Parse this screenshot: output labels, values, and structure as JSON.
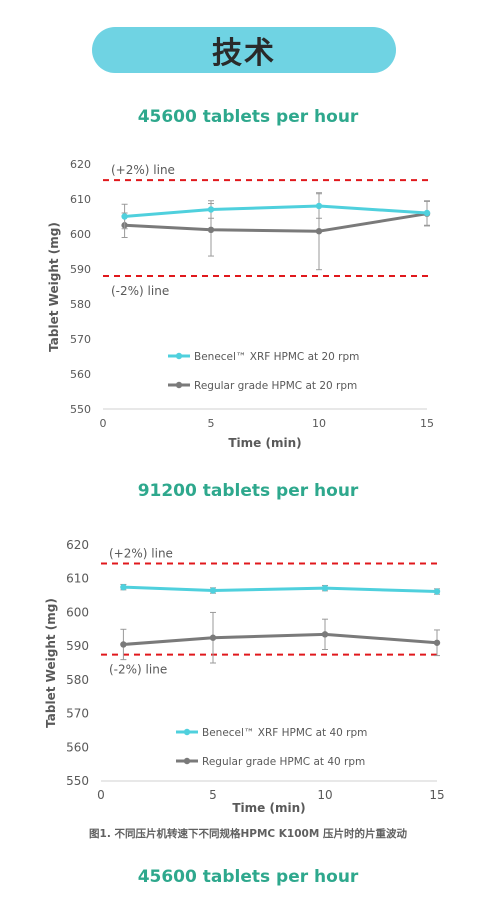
{
  "banner": {
    "title": "技术"
  },
  "headings": {
    "top": "45600 tablets per hour",
    "middle": "91200 tablets per hour",
    "bottom": "45600 tablets per hour"
  },
  "caption": "图1. 不同压片机转速下不同规格HPMC K100M 压片时的片重波动",
  "colors": {
    "teal": "#4fd0dd",
    "gray": "#7a7a7a",
    "limit": "#e0181c",
    "heading": "#2ea88d"
  },
  "chart_data": [
    {
      "type": "line",
      "title": "45600 tablets per hour",
      "xlabel": "Time (min)",
      "ylabel": "Tablet Weight (mg)",
      "xlim": [
        0,
        15
      ],
      "ylim": [
        550,
        620
      ],
      "xticks": [
        0,
        5,
        10,
        15
      ],
      "yticks": [
        550,
        560,
        570,
        580,
        590,
        600,
        610,
        620
      ],
      "grid": false,
      "legend": "lower-center",
      "limit_lines": [
        {
          "label": "(+2%) line",
          "y": 615.4
        },
        {
          "label": "(-2%) line",
          "y": 588
        }
      ],
      "series": [
        {
          "name": "Benecel™ XRF HPMC at 20 rpm",
          "color": "#4fd0dd",
          "x": [
            1,
            5,
            10,
            15
          ],
          "y": [
            605,
            607,
            608,
            606
          ],
          "err": [
            3.5,
            2.5,
            3.5,
            3.5
          ]
        },
        {
          "name": "Regular grade HPMC at 20 rpm",
          "color": "#7a7a7a",
          "x": [
            1,
            5,
            10,
            15
          ],
          "y": [
            602.5,
            601.2,
            600.8,
            605.8
          ],
          "err": [
            3.5,
            7.5,
            11,
            3.5
          ]
        }
      ]
    },
    {
      "type": "line",
      "title": "91200 tablets per hour",
      "xlabel": "Time (min)",
      "ylabel": "Tablet Weight (mg)",
      "xlim": [
        0,
        15
      ],
      "ylim": [
        550,
        620
      ],
      "xticks": [
        0,
        5,
        10,
        15
      ],
      "yticks": [
        550,
        560,
        570,
        580,
        590,
        600,
        610,
        620
      ],
      "grid": false,
      "legend": "lower-center",
      "limit_lines": [
        {
          "label": "(+2%) line",
          "y": 614.5
        },
        {
          "label": "(-2%) line",
          "y": 587.5
        }
      ],
      "series": [
        {
          "name": "Benecel™ XRF HPMC at 40 rpm",
          "color": "#4fd0dd",
          "x": [
            1,
            5,
            10,
            15
          ],
          "y": [
            607.5,
            606.5,
            607.2,
            606.2
          ],
          "err": [
            0.8,
            0.8,
            0.8,
            0.8
          ]
        },
        {
          "name": "Regular grade HPMC at 40 rpm",
          "color": "#7a7a7a",
          "x": [
            1,
            5,
            10,
            15
          ],
          "y": [
            590.5,
            592.5,
            593.5,
            591
          ],
          "err": [
            4.5,
            7.5,
            4.5,
            3.8
          ]
        }
      ]
    }
  ]
}
